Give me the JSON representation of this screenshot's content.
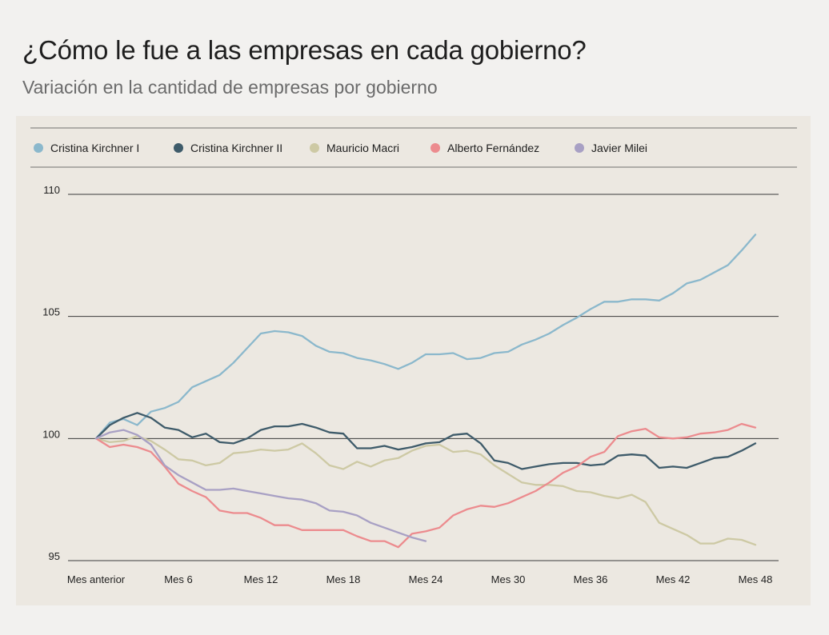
{
  "header": {
    "title": "¿Cómo le fue a las empresas en cada gobierno?",
    "subtitle": "Variación en la cantidad de empresas por gobierno"
  },
  "chart_data": {
    "type": "line",
    "title": "¿Cómo le fue a las empresas en cada gobierno?",
    "subtitle": "Variación en la cantidad de empresas por gobierno",
    "xlabel": "",
    "ylabel": "",
    "ylim": [
      95,
      110
    ],
    "yticks": [
      "110",
      "105",
      "100",
      "95"
    ],
    "ytick_values": [
      110,
      105,
      100,
      95
    ],
    "xtick_labels": [
      "Mes anterior",
      "Mes 6",
      "Mes 12",
      "Mes 18",
      "Mes 24",
      "Mes 30",
      "Mes 36",
      "Mes 42",
      "Mes 48"
    ],
    "xtick_values": [
      0,
      6,
      12,
      18,
      24,
      30,
      36,
      42,
      48
    ],
    "xlim": [
      0,
      48
    ],
    "grid": "horizontal",
    "legend_position": "top",
    "series": [
      {
        "name": "Cristina Kirchner I",
        "color": "#8bb8cc",
        "values": [
          100,
          100.65,
          100.8,
          100.55,
          101.1,
          101.25,
          101.5,
          102.1,
          102.35,
          102.6,
          103.1,
          103.7,
          104.3,
          104.4,
          104.35,
          104.2,
          103.8,
          103.55,
          103.5,
          103.3,
          103.2,
          103.05,
          102.85,
          103.1,
          103.45,
          103.45,
          103.5,
          103.25,
          103.3,
          103.5,
          103.55,
          103.85,
          104.05,
          104.3,
          104.65,
          104.95,
          105.3,
          105.6,
          105.6,
          105.7,
          105.7,
          105.65,
          105.95,
          106.35,
          106.5,
          106.8,
          107.1,
          107.7,
          108.35
        ]
      },
      {
        "name": "Cristina Kirchner II",
        "color": "#3e5b6a",
        "values": [
          100,
          100.55,
          100.85,
          101.05,
          100.85,
          100.45,
          100.35,
          100.05,
          100.2,
          99.85,
          99.8,
          100.0,
          100.35,
          100.5,
          100.5,
          100.6,
          100.45,
          100.25,
          100.2,
          99.6,
          99.6,
          99.7,
          99.55,
          99.65,
          99.8,
          99.85,
          100.15,
          100.2,
          99.8,
          99.1,
          99.0,
          98.75,
          98.85,
          98.95,
          99.0,
          99.0,
          98.9,
          98.95,
          99.3,
          99.35,
          99.3,
          98.8,
          98.85,
          98.8,
          99.0,
          99.2,
          99.25,
          99.5,
          99.8
        ]
      },
      {
        "name": "Mauricio Macri",
        "color": "#cdc9a4",
        "values": [
          100,
          99.85,
          99.9,
          100.1,
          99.9,
          99.55,
          99.15,
          99.1,
          98.9,
          99.0,
          99.4,
          99.45,
          99.55,
          99.5,
          99.55,
          99.8,
          99.4,
          98.9,
          98.75,
          99.05,
          98.85,
          99.1,
          99.2,
          99.5,
          99.7,
          99.75,
          99.45,
          99.5,
          99.35,
          98.9,
          98.55,
          98.2,
          98.1,
          98.1,
          98.05,
          97.85,
          97.8,
          97.65,
          97.55,
          97.7,
          97.4,
          96.55,
          96.3,
          96.05,
          95.7,
          95.7,
          95.9,
          95.85,
          95.65
        ]
      },
      {
        "name": "Alberto Fernández",
        "color": "#ec8b8e",
        "values": [
          100,
          99.65,
          99.75,
          99.65,
          99.45,
          98.85,
          98.15,
          97.85,
          97.6,
          97.05,
          96.95,
          96.95,
          96.75,
          96.45,
          96.45,
          96.25,
          96.25,
          96.25,
          96.25,
          96.0,
          95.8,
          95.8,
          95.55,
          96.1,
          96.2,
          96.35,
          96.85,
          97.1,
          97.25,
          97.2,
          97.35,
          97.6,
          97.85,
          98.2,
          98.6,
          98.85,
          99.25,
          99.45,
          100.1,
          100.3,
          100.4,
          100.05,
          100.0,
          100.05,
          100.2,
          100.25,
          100.35,
          100.6,
          100.45
        ]
      },
      {
        "name": "Javier Milei",
        "color": "#a8a0c4",
        "values": [
          100,
          100.25,
          100.35,
          100.15,
          99.75,
          98.9,
          98.5,
          98.2,
          97.9,
          97.9,
          97.95,
          97.85,
          97.75,
          97.65,
          97.55,
          97.5,
          97.35,
          97.05,
          97.0,
          96.85,
          96.55,
          96.35,
          96.15,
          95.95,
          95.8
        ]
      }
    ]
  }
}
